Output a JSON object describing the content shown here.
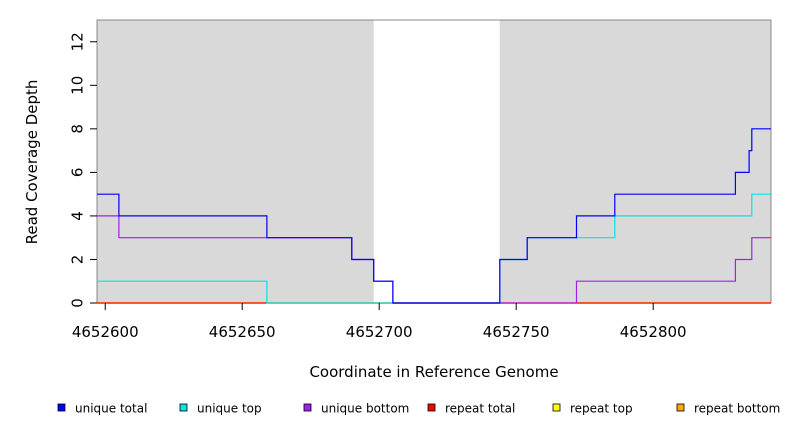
{
  "chart_data": {
    "type": "line",
    "step": true,
    "title": "",
    "xlabel": "Coordinate in Reference Genome",
    "ylabel": "Read Coverage Depth",
    "xlim": [
      4652597,
      4652843
    ],
    "ylim": [
      0,
      13
    ],
    "x_ticks": [
      4652600,
      4652650,
      4652700,
      4652750,
      4652800
    ],
    "y_ticks": [
      0,
      2,
      4,
      6,
      8,
      10,
      12
    ],
    "shaded_regions": [
      [
        4652597,
        4652698
      ],
      [
        4652744,
        4652843
      ]
    ],
    "shade_color": "#d9d9d9",
    "legend_placement": "bottom",
    "series": [
      {
        "name": "unique total",
        "color": "#0000ff",
        "points": [
          [
            4652597,
            5
          ],
          [
            4652605,
            4
          ],
          [
            4652659,
            3
          ],
          [
            4652690,
            2
          ],
          [
            4652698,
            1
          ],
          [
            4652705,
            0
          ],
          [
            4652744,
            2
          ],
          [
            4652754,
            3
          ],
          [
            4652772,
            4
          ],
          [
            4652786,
            5
          ],
          [
            4652830,
            6
          ],
          [
            4652835,
            7
          ],
          [
            4652836,
            8
          ],
          [
            4652843,
            8
          ]
        ]
      },
      {
        "name": "unique top",
        "color": "#00e5e5",
        "points": [
          [
            4652597,
            1
          ],
          [
            4652659,
            0
          ],
          [
            4652744,
            2
          ],
          [
            4652754,
            3
          ],
          [
            4652786,
            4
          ],
          [
            4652836,
            5
          ],
          [
            4652843,
            5
          ]
        ]
      },
      {
        "name": "unique bottom",
        "color": "#a020f0",
        "points": [
          [
            4652597,
            4
          ],
          [
            4652605,
            3
          ],
          [
            4652659,
            3
          ],
          [
            4652690,
            2
          ],
          [
            4652698,
            1
          ],
          [
            4652705,
            0
          ],
          [
            4652772,
            1
          ],
          [
            4652830,
            2
          ],
          [
            4652836,
            3
          ],
          [
            4652843,
            3
          ]
        ]
      },
      {
        "name": "repeat total",
        "color": "#ff0000",
        "points": [
          [
            4652597,
            0
          ],
          [
            4652843,
            0
          ]
        ]
      },
      {
        "name": "repeat top",
        "color": "#ffff00",
        "points": [
          [
            4652597,
            0
          ],
          [
            4652843,
            0
          ]
        ]
      },
      {
        "name": "repeat bottom",
        "color": "#ffa500",
        "points": [
          [
            4652597,
            0
          ],
          [
            4652843,
            0
          ]
        ]
      }
    ]
  }
}
